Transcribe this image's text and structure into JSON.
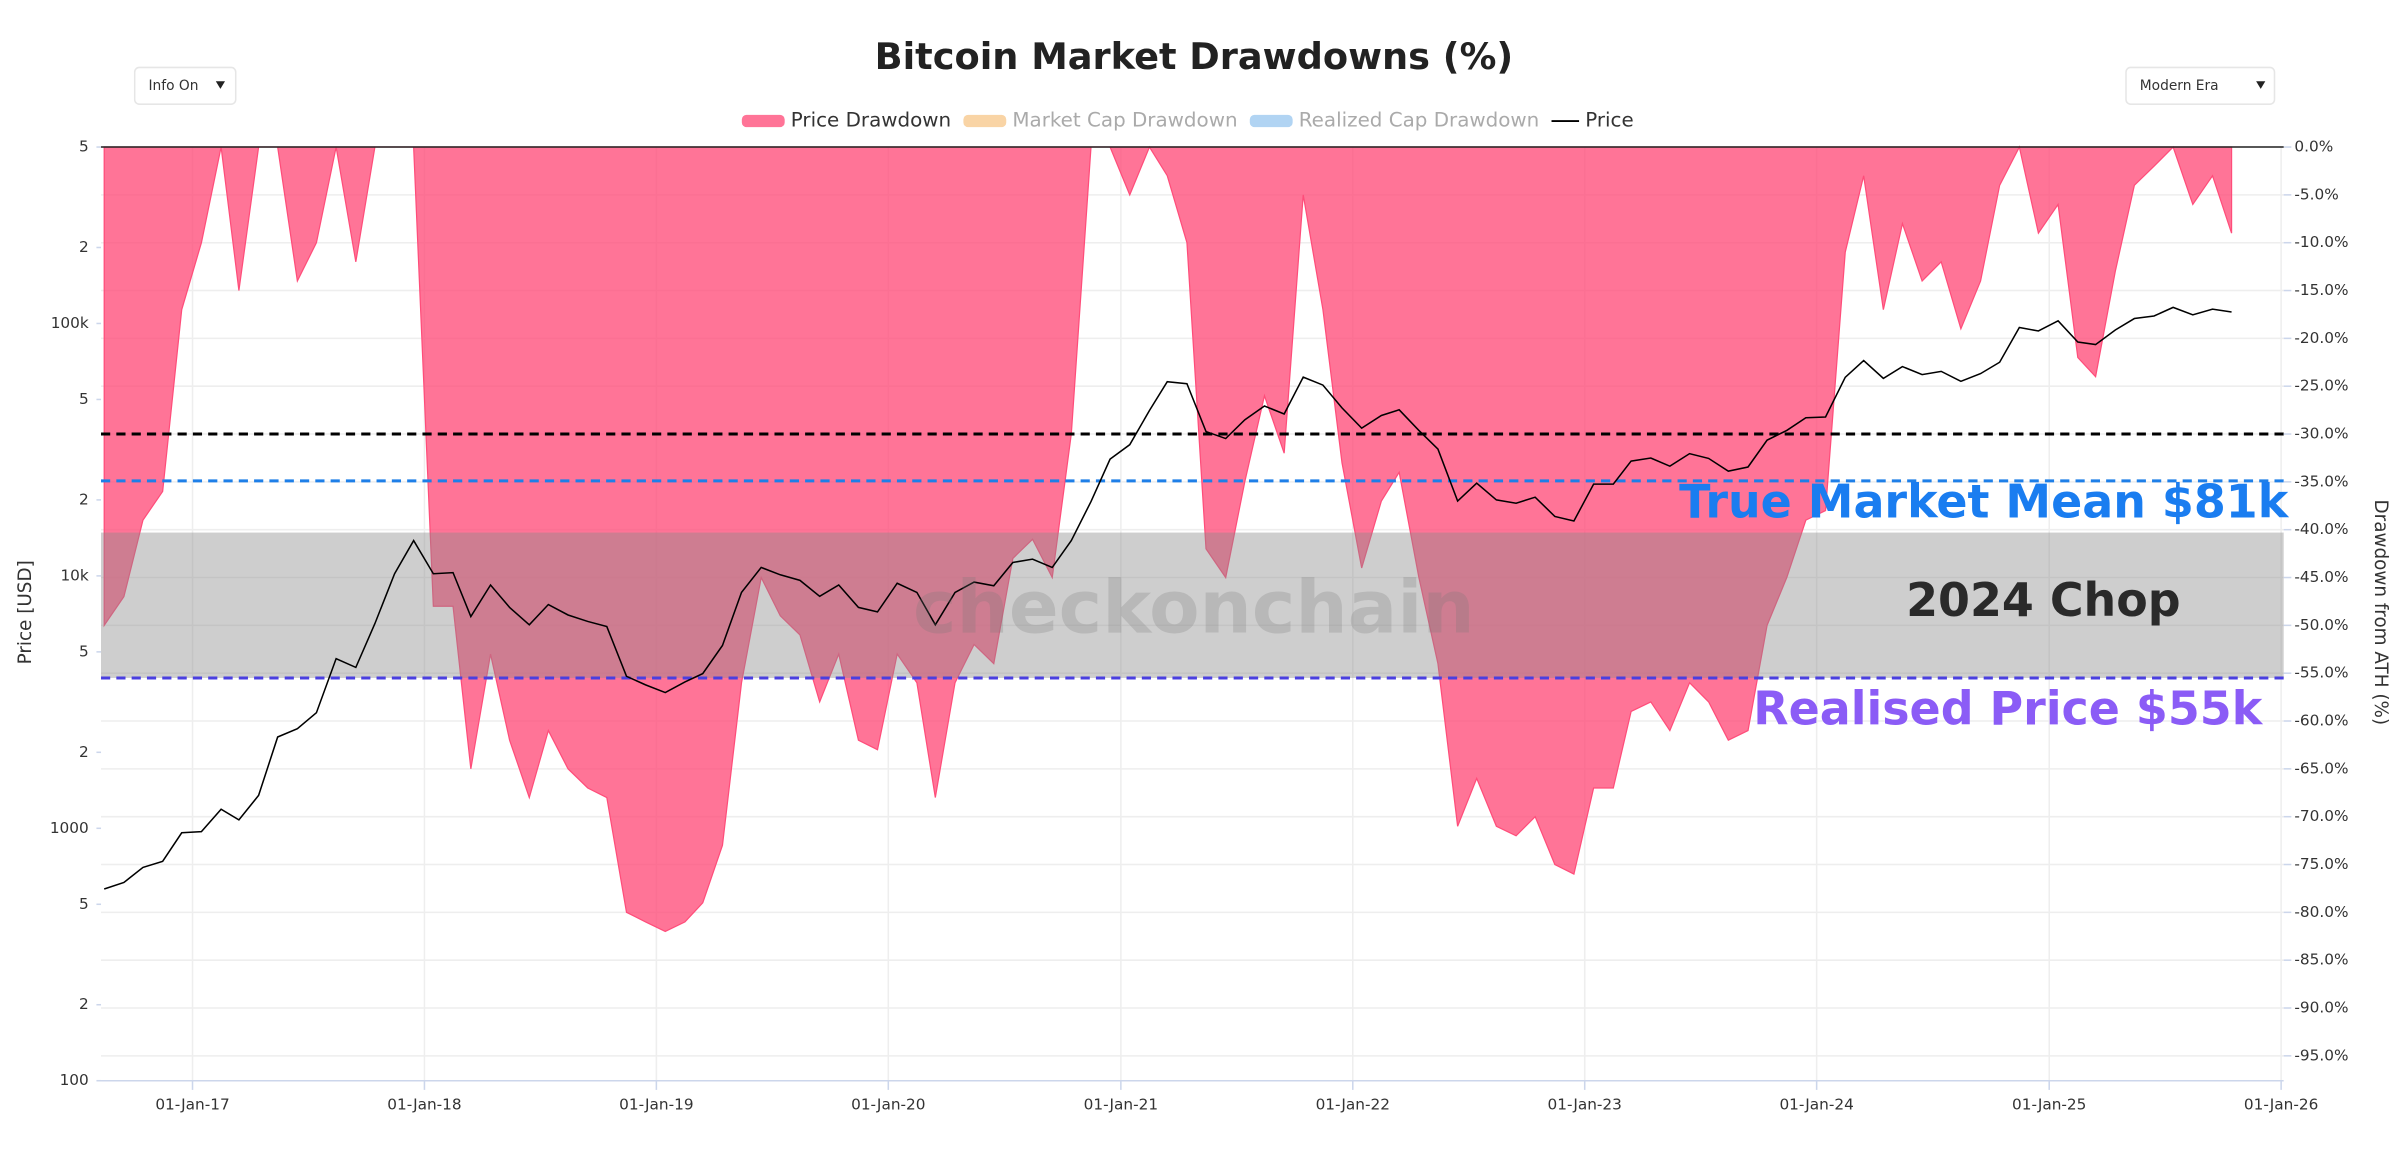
{
  "chart_data": {
    "type": "line",
    "title": "Bitcoin Market Drawdowns (%)",
    "x": [
      "2016-08-15",
      "2016-09-15",
      "2016-10-15",
      "2016-11-15",
      "2016-12-15",
      "2017-01-15",
      "2017-02-15",
      "2017-03-15",
      "2017-04-15",
      "2017-05-15",
      "2017-06-15",
      "2017-07-15",
      "2017-08-15",
      "2017-09-15",
      "2017-10-15",
      "2017-11-15",
      "2017-12-15",
      "2018-01-15",
      "2018-02-15",
      "2018-03-15",
      "2018-04-15",
      "2018-05-15",
      "2018-06-15",
      "2018-07-15",
      "2018-08-15",
      "2018-09-15",
      "2018-10-15",
      "2018-11-15",
      "2018-12-15",
      "2019-01-15",
      "2019-02-15",
      "2019-03-15",
      "2019-04-15",
      "2019-05-15",
      "2019-06-15",
      "2019-07-15",
      "2019-08-15",
      "2019-09-15",
      "2019-10-15",
      "2019-11-15",
      "2019-12-15",
      "2020-01-15",
      "2020-02-15",
      "2020-03-15",
      "2020-04-15",
      "2020-05-15",
      "2020-06-15",
      "2020-07-15",
      "2020-08-15",
      "2020-09-15",
      "2020-10-15",
      "2020-11-15",
      "2020-12-15",
      "2021-01-15",
      "2021-02-15",
      "2021-03-15",
      "2021-04-15",
      "2021-05-15",
      "2021-06-15",
      "2021-07-15",
      "2021-08-15",
      "2021-09-15",
      "2021-10-15",
      "2021-11-15",
      "2021-12-15",
      "2022-01-15",
      "2022-02-15",
      "2022-03-15",
      "2022-04-15",
      "2022-05-15",
      "2022-06-15",
      "2022-07-15",
      "2022-08-15",
      "2022-09-15",
      "2022-10-15",
      "2022-11-15",
      "2022-12-15",
      "2023-01-15",
      "2023-02-15",
      "2023-03-15",
      "2023-04-15",
      "2023-05-15",
      "2023-06-15",
      "2023-07-15",
      "2023-08-15",
      "2023-09-15",
      "2023-10-15",
      "2023-11-15",
      "2023-12-15",
      "2024-01-15",
      "2024-02-15",
      "2024-03-15",
      "2024-04-15",
      "2024-05-15",
      "2024-06-15",
      "2024-07-15",
      "2024-08-15",
      "2024-09-15",
      "2024-10-15",
      "2024-11-15",
      "2024-12-15",
      "2025-01-15",
      "2025-02-15",
      "2025-03-15",
      "2025-04-15",
      "2025-05-15",
      "2025-06-15",
      "2025-07-15",
      "2025-08-15",
      "2025-09-15",
      "2025-10-15"
    ],
    "xlim": [
      "2016-08-10",
      "2026-01-05"
    ],
    "xticks": [
      {
        "value": "2017-01-01",
        "label": "01-Jan-17"
      },
      {
        "value": "2018-01-01",
        "label": "01-Jan-18"
      },
      {
        "value": "2019-01-01",
        "label": "01-Jan-19"
      },
      {
        "value": "2020-01-01",
        "label": "01-Jan-20"
      },
      {
        "value": "2021-01-01",
        "label": "01-Jan-21"
      },
      {
        "value": "2022-01-01",
        "label": "01-Jan-22"
      },
      {
        "value": "2023-01-01",
        "label": "01-Jan-23"
      },
      {
        "value": "2024-01-01",
        "label": "01-Jan-24"
      },
      {
        "value": "2025-01-01",
        "label": "01-Jan-25"
      },
      {
        "value": "2026-01-01",
        "label": "01-Jan-26"
      }
    ],
    "ylabel": "Price [USD]",
    "yscale": "log",
    "ylim": [
      100,
      500000
    ],
    "yticks": [
      100,
      {
        "value": 200,
        "label": "2"
      },
      {
        "value": 500,
        "label": "5"
      },
      1000,
      {
        "value": 2000,
        "label": "2"
      },
      {
        "value": 5000,
        "label": "5"
      },
      {
        "value": 10000,
        "label": "10k"
      },
      {
        "value": 20000,
        "label": "2"
      },
      {
        "value": 50000,
        "label": "5"
      },
      {
        "value": 100000,
        "label": "100k"
      },
      {
        "value": 200000,
        "label": "2"
      },
      {
        "value": 500000,
        "label": "5"
      }
    ],
    "y2label": "Drawdown from ATH (%)",
    "y2lim": [
      -97.6,
      0
    ],
    "y2ticks": [
      {
        "value": 0,
        "label": "0.0%"
      },
      {
        "value": -5,
        "label": "-5.0%"
      },
      {
        "value": -10,
        "label": "-10.0%"
      },
      {
        "value": -15,
        "label": "-15.0%"
      },
      {
        "value": -20,
        "label": "-20.0%"
      },
      {
        "value": -25,
        "label": "-25.0%"
      },
      {
        "value": -30,
        "label": "-30.0%"
      },
      {
        "value": -35,
        "label": "-35.0%"
      },
      {
        "value": -40,
        "label": "-40.0%"
      },
      {
        "value": -45,
        "label": "-45.0%"
      },
      {
        "value": -50,
        "label": "-50.0%"
      },
      {
        "value": -55,
        "label": "-55.0%"
      },
      {
        "value": -60,
        "label": "-60.0%"
      },
      {
        "value": -65,
        "label": "-65.0%"
      },
      {
        "value": -70,
        "label": "-70.0%"
      },
      {
        "value": -75,
        "label": "-75.0%"
      },
      {
        "value": -80,
        "label": "-80.0%"
      },
      {
        "value": -85,
        "label": "-85.0%"
      },
      {
        "value": -90,
        "label": "-90.0%"
      },
      {
        "value": -95,
        "label": "-95.0%"
      }
    ],
    "grid": true,
    "legend": "top",
    "series": [
      {
        "name": "Price Drawdown",
        "color": "#ff4d7a",
        "kind": "area",
        "axis": "y2",
        "visible": true,
        "values": [
          -50,
          -47,
          -39,
          -36,
          -17,
          -10,
          0,
          -15,
          0,
          0,
          -14,
          -10,
          0,
          -12,
          0,
          0,
          0,
          -48,
          -48,
          -65,
          -53,
          -62,
          -68,
          -61,
          -65,
          -67,
          -68,
          -80,
          -81,
          -82,
          -81,
          -79,
          -73,
          -56,
          -45,
          -49,
          -51,
          -58,
          -53,
          -62,
          -63,
          -53,
          -56,
          -68,
          -56,
          -52,
          -54,
          -43,
          -41,
          -45,
          -30,
          0,
          0,
          -5,
          0,
          -3,
          -10,
          -42,
          -45,
          -35,
          -26,
          -32,
          -5,
          -17,
          -33,
          -44,
          -37,
          -34,
          -45,
          -54,
          -71,
          -66,
          -71,
          -72,
          -70,
          -75,
          -76,
          -67,
          -67,
          -59,
          -58,
          -61,
          -56,
          -58,
          -62,
          -61,
          -50,
          -45,
          -39,
          -38,
          -11,
          -3,
          -17,
          -8,
          -14,
          -12,
          -19,
          -14,
          -4,
          0,
          -9,
          -6,
          -22,
          -24,
          -13,
          -4,
          -2,
          0,
          -6,
          -3,
          -9
        ]
      },
      {
        "name": "Market Cap Drawdown",
        "color": "#f7c98f",
        "visible": false
      },
      {
        "name": "Realized Cap Drawdown",
        "color": "#9ec9f0",
        "visible": false
      },
      {
        "name": "Price",
        "color": "#000000",
        "kind": "line",
        "axis": "y",
        "visible": true,
        "values": [
          575,
          610,
          700,
          740,
          960,
          970,
          1190,
          1080,
          1350,
          2300,
          2480,
          2870,
          4700,
          4340,
          6470,
          10200,
          13800,
          10200,
          10300,
          6900,
          9200,
          7500,
          6400,
          7700,
          7000,
          6600,
          6300,
          4000,
          3700,
          3450,
          3800,
          4100,
          5300,
          8600,
          10800,
          10100,
          9600,
          8300,
          9200,
          7500,
          7200,
          9350,
          8600,
          6400,
          8600,
          9450,
          9140,
          11300,
          11650,
          10800,
          13800,
          19700,
          29000,
          33100,
          45200,
          58800,
          57700,
          37300,
          35000,
          41500,
          47100,
          43800,
          61300,
          57000,
          46300,
          38500,
          43200,
          45500,
          37700,
          31800,
          19800,
          23300,
          20000,
          19400,
          20500,
          17200,
          16500,
          23100,
          23100,
          28500,
          29300,
          27200,
          30500,
          29200,
          26000,
          27000,
          34500,
          37700,
          42300,
          42600,
          61200,
          71300,
          60600,
          67500,
          62700,
          64600,
          59000,
          63300,
          70200,
          96400,
          93400,
          102400,
          84400,
          82500,
          94200,
          104600,
          107100,
          115800,
          108200,
          114000,
          111000
        ]
      }
    ],
    "reference_lines": [
      {
        "value": -30,
        "axis": "y2",
        "color": "#000000"
      },
      {
        "value": -34.9,
        "axis": "y2",
        "color": "#1e7fe8"
      },
      {
        "value": -55.5,
        "axis": "y2",
        "color": "#4a3fe0"
      }
    ],
    "bands": [
      {
        "from": -40.3,
        "to": -55.5,
        "axis": "y2",
        "color": "#8a8a8a",
        "label": "2024 Chop"
      }
    ],
    "annotations": [
      {
        "text": "True Market Mean $81k",
        "color": "#1a7df0"
      },
      {
        "text": "Realised Price $55k",
        "color": "#8b5cf6"
      }
    ],
    "watermark": "checkonchain"
  },
  "controls": {
    "info": "Info On",
    "era": "Modern Era"
  }
}
